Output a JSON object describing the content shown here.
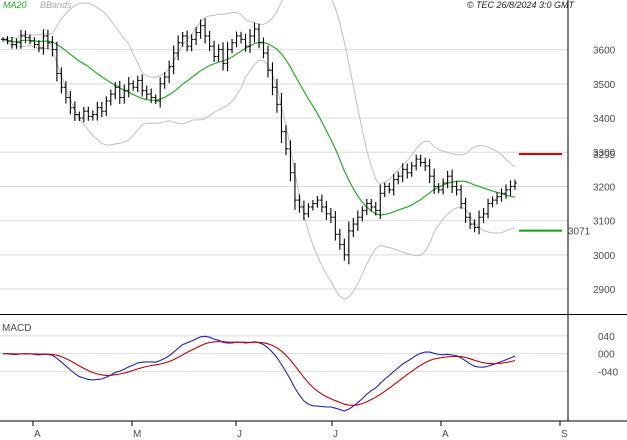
{
  "header": {
    "legend_ma": "MA20",
    "legend_bb": "BBands",
    "source": "© TEC 26/8/2024 3:0 GMT"
  },
  "colors": {
    "price": "#000000",
    "ma20": "#22b022",
    "bbands": "#c0c0c0",
    "resistance": "#dd0000",
    "support": "#00aa00",
    "macd": "#2222cc",
    "signal": "#cc0000",
    "grid": "#dcdcdc",
    "frame": "#000000"
  },
  "chart_data": [
    {
      "type": "ohlc",
      "title": "",
      "y_ticks": [
        "3600",
        "3500",
        "3400",
        "3300",
        "3200",
        "3100",
        "3000",
        "2900"
      ],
      "ylim": [
        2830,
        3710
      ],
      "x_months": [
        "A",
        "M",
        "J",
        "J",
        "A",
        "S"
      ],
      "levels": [
        {
          "name": "resistance",
          "value": 3295,
          "label": "3295"
        },
        {
          "name": "support",
          "value": 3071,
          "label": "3071"
        }
      ],
      "closes": [
        3630,
        3625,
        3615,
        3620,
        3640,
        3635,
        3625,
        3615,
        3605,
        3640,
        3620,
        3600,
        3530,
        3490,
        3460,
        3430,
        3410,
        3400,
        3420,
        3405,
        3410,
        3430,
        3420,
        3450,
        3470,
        3490,
        3460,
        3480,
        3500,
        3490,
        3510,
        3480,
        3470,
        3460,
        3450,
        3500,
        3520,
        3550,
        3590,
        3620,
        3640,
        3610,
        3630,
        3650,
        3670,
        3640,
        3610,
        3580,
        3600,
        3560,
        3600,
        3620,
        3640,
        3630,
        3610,
        3640,
        3660,
        3620,
        3590,
        3540,
        3490,
        3440,
        3360,
        3310,
        3240,
        3160,
        3140,
        3120,
        3140,
        3150,
        3160,
        3140,
        3120,
        3110,
        3060,
        3030,
        3000,
        3070,
        3090,
        3110,
        3130,
        3150,
        3140,
        3130,
        3180,
        3200,
        3190,
        3220,
        3230,
        3250,
        3240,
        3260,
        3280,
        3270,
        3260,
        3230,
        3200,
        3190,
        3210,
        3230,
        3200,
        3190,
        3150,
        3110,
        3090,
        3080,
        3110,
        3120,
        3150,
        3160,
        3170,
        3180,
        3190,
        3200,
        3210
      ],
      "ma20": {
        "name": "MA20"
      },
      "bbands": {
        "name": "BBands"
      }
    },
    {
      "type": "line",
      "title": "MACD",
      "y_ticks": [
        "040",
        "000",
        "-040"
      ],
      "ylim": [
        -150,
        85
      ],
      "series": [
        {
          "name": "MACD"
        },
        {
          "name": "signal"
        }
      ]
    }
  ]
}
